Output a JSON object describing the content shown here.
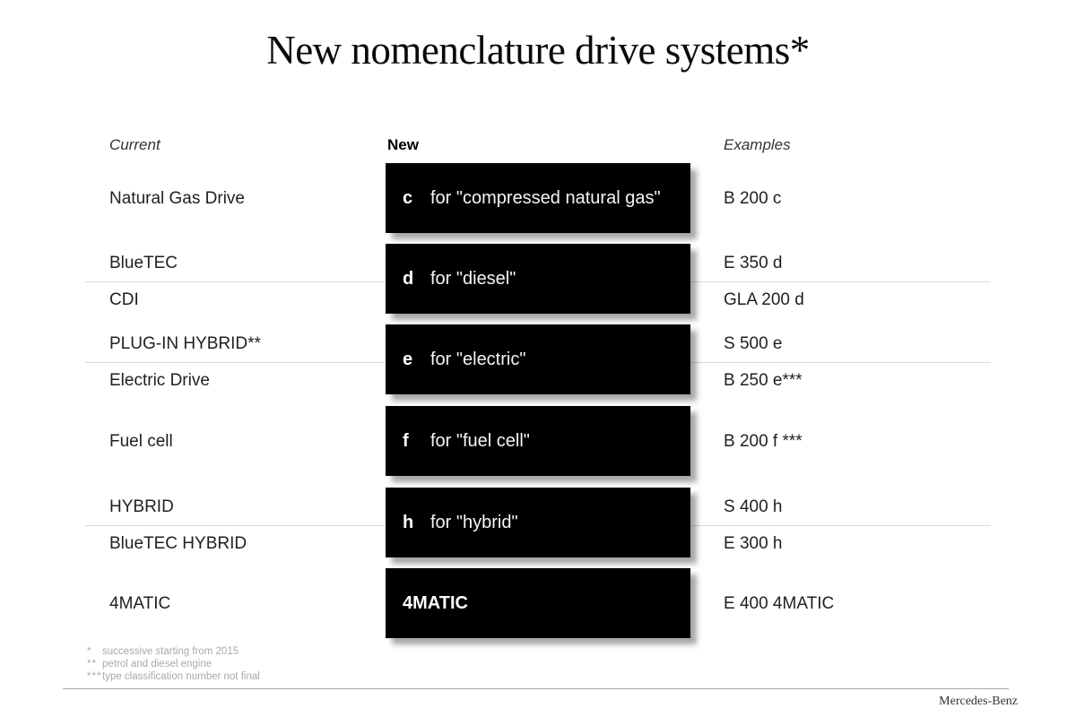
{
  "title": "New nomenclature drive systems*",
  "columns": {
    "current": "Current",
    "new": "New",
    "examples": "Examples"
  },
  "rows": [
    {
      "current": [
        "Natural Gas Drive"
      ],
      "letter": "c",
      "description": "for \"compressed natural gas\"",
      "examples": [
        "B 200 c"
      ]
    },
    {
      "current": [
        "BlueTEC",
        "CDI"
      ],
      "letter": "d",
      "description": "for \"diesel\"",
      "examples": [
        "E 350 d",
        "GLA 200 d"
      ]
    },
    {
      "current": [
        "PLUG-IN HYBRID**",
        "Electric Drive"
      ],
      "letter": "e",
      "description": "for \"electric\"",
      "examples": [
        "S 500 e",
        "B 250 e***"
      ]
    },
    {
      "current": [
        "Fuel cell"
      ],
      "letter": "f",
      "description": "for \"fuel cell\"",
      "examples": [
        "B 200 f ***"
      ]
    },
    {
      "current": [
        "HYBRID",
        "BlueTEC HYBRID"
      ],
      "letter": "h",
      "description": "for \"hybrid\"",
      "examples": [
        "S 400 h",
        "E 300 h"
      ]
    },
    {
      "current": [
        "4MATIC"
      ],
      "letter": "4MATIC",
      "description": "",
      "examples": [
        "E 400 4MATIC"
      ]
    }
  ],
  "footnotes": [
    {
      "marker": "*",
      "text": "successive starting from 2015"
    },
    {
      "marker": "**",
      "text": "petrol and diesel engine"
    },
    {
      "marker": "***",
      "text": "type classification number not final"
    }
  ],
  "footer": {
    "brand": "Mercedes-Benz"
  },
  "colors": {
    "box_background": "#000000",
    "box_text": "#ffffff",
    "separator": "#d9d9d9",
    "footnote_text": "#a9a9a9",
    "footer_rule": "#aaaaaa"
  }
}
